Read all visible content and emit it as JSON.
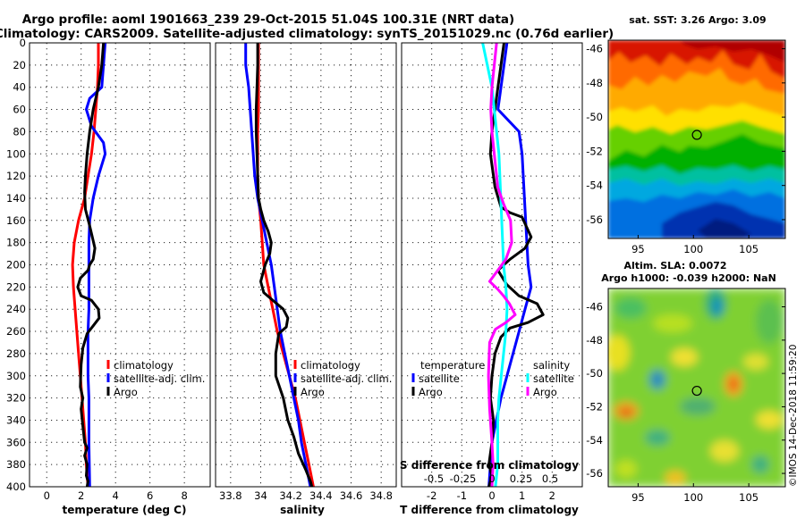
{
  "header": {
    "line1": "Argo profile: aoml 1901663_239 29-Oct-2015 51.04S 100.31E (NRT data)",
    "line2": "Climatology: CARS2009. Satellite-adjusted climatology: synTS_20151029.nc (0.76d earlier)"
  },
  "colors": {
    "climatology": "#ff0000",
    "satellite": "#0000ff",
    "argo": "#000000",
    "salinity_satellite": "#00ffff",
    "salinity_argo": "#ff00ff"
  },
  "credit": "©IMOS 14-Dec-2018 11:59:20",
  "chart_data": [
    {
      "type": "line",
      "name": "temperature",
      "xlabel": "temperature (deg C)",
      "ylabel": "depth",
      "xlim": [
        -1,
        9.5
      ],
      "ylim": [
        0,
        400
      ],
      "x_ticks": [
        0,
        2,
        4,
        6,
        8
      ],
      "x_tick_labels": [
        "0",
        "2",
        "4",
        "6",
        "8"
      ],
      "y_ticks": [
        0,
        20,
        40,
        60,
        80,
        100,
        120,
        140,
        160,
        180,
        200,
        220,
        240,
        260,
        280,
        300,
        320,
        340,
        360,
        380,
        400
      ],
      "y_tick_labels": [
        "0",
        "20",
        "40",
        "60",
        "80",
        "100",
        "120",
        "140",
        "160",
        "180",
        "200",
        "220",
        "240",
        "260",
        "280",
        "300",
        "320",
        "340",
        "360",
        "380",
        "400"
      ],
      "legend": [
        "climatology",
        "satellite-adj. clim.",
        "Argo"
      ],
      "series": [
        {
          "name": "climatology",
          "color": "#ff0000",
          "x": [
            3.0,
            3.0,
            2.95,
            2.85,
            2.75,
            2.6,
            2.4,
            2.2,
            1.85,
            1.6,
            1.5,
            1.55,
            1.65,
            1.75,
            1.85,
            1.95,
            2.05,
            2.15,
            2.25,
            2.3,
            2.35,
            2.4
          ],
          "y": [
            0,
            20,
            40,
            60,
            80,
            100,
            120,
            140,
            160,
            180,
            200,
            220,
            240,
            260,
            280,
            300,
            320,
            340,
            360,
            380,
            390,
            400
          ]
        },
        {
          "name": "satellite-adj. clim.",
          "color": "#0000ff",
          "x": [
            3.4,
            3.3,
            3.2,
            2.5,
            2.3,
            2.6,
            3.3,
            3.4,
            3.0,
            2.7,
            2.5,
            2.45,
            2.45,
            2.45,
            2.45,
            2.4,
            2.4,
            2.4,
            2.45,
            2.45,
            2.45,
            2.5
          ],
          "y": [
            0,
            20,
            40,
            50,
            60,
            75,
            90,
            100,
            120,
            140,
            160,
            180,
            200,
            220,
            240,
            260,
            280,
            300,
            320,
            340,
            360,
            400
          ]
        },
        {
          "name": "Argo",
          "color": "#000000",
          "x": [
            3.3,
            3.2,
            3.0,
            2.7,
            2.5,
            2.35,
            2.25,
            2.2,
            2.25,
            2.5,
            2.65,
            2.8,
            2.7,
            2.5,
            2.4,
            1.95,
            1.8,
            2.0,
            2.6,
            3.0,
            3.05,
            2.7,
            2.35,
            2.1,
            2.0,
            1.95,
            2.1,
            2.0,
            2.1,
            2.2,
            2.35,
            2.2,
            2.35,
            2.3,
            2.4,
            2.35
          ],
          "y": [
            0,
            20,
            40,
            60,
            80,
            100,
            120,
            135,
            150,
            165,
            175,
            185,
            195,
            200,
            205,
            212,
            220,
            228,
            232,
            240,
            248,
            255,
            262,
            275,
            290,
            310,
            320,
            330,
            345,
            360,
            365,
            372,
            380,
            390,
            395,
            400
          ]
        }
      ]
    },
    {
      "type": "line",
      "name": "salinity",
      "xlabel": "salinity",
      "ylabel": "depth",
      "xlim": [
        33.7,
        34.9
      ],
      "ylim": [
        0,
        400
      ],
      "x_ticks": [
        33.8,
        34,
        34.2,
        34.4,
        34.6,
        34.8
      ],
      "x_tick_labels": [
        "33.8",
        "34",
        "34.2",
        "34.4",
        "34.6",
        "34.8"
      ],
      "legend": [
        "climatology",
        "satellite-adj. clim.",
        "Argo"
      ],
      "series": [
        {
          "name": "climatology",
          "color": "#ff0000",
          "x": [
            33.985,
            33.985,
            33.985,
            33.985,
            33.98,
            33.98,
            33.98,
            33.985,
            34.0,
            34.01,
            34.02,
            34.05,
            34.08,
            34.11,
            34.15,
            34.19,
            34.23,
            34.26,
            34.29,
            34.32,
            34.35
          ],
          "y": [
            0,
            20,
            40,
            60,
            80,
            100,
            120,
            140,
            160,
            180,
            200,
            220,
            240,
            260,
            280,
            300,
            320,
            340,
            360,
            380,
            400
          ]
        },
        {
          "name": "satellite-adj. clim.",
          "color": "#0000ff",
          "x": [
            33.9,
            33.9,
            33.92,
            33.93,
            33.94,
            33.95,
            33.96,
            33.98,
            34.01,
            34.04,
            34.07,
            34.09,
            34.11,
            34.13,
            34.16,
            34.19,
            34.22,
            34.25,
            34.27,
            34.3,
            34.33
          ],
          "y": [
            0,
            20,
            40,
            60,
            80,
            100,
            120,
            140,
            160,
            180,
            200,
            220,
            240,
            260,
            280,
            300,
            320,
            340,
            360,
            380,
            400
          ]
        },
        {
          "name": "Argo",
          "color": "#000000",
          "x": [
            33.98,
            33.98,
            33.975,
            33.97,
            33.97,
            33.975,
            33.98,
            33.985,
            34.0,
            34.02,
            34.05,
            34.07,
            34.06,
            34.03,
            34.0,
            34.02,
            34.08,
            34.15,
            34.18,
            34.17,
            34.12,
            34.1,
            34.1,
            34.15,
            34.18,
            34.22,
            34.25,
            34.3,
            34.33,
            34.34
          ],
          "y": [
            0,
            20,
            40,
            60,
            80,
            100,
            120,
            140,
            150,
            160,
            170,
            180,
            190,
            200,
            215,
            225,
            232,
            240,
            248,
            256,
            262,
            280,
            300,
            320,
            340,
            355,
            370,
            385,
            395,
            400
          ]
        }
      ]
    },
    {
      "type": "line",
      "name": "differences",
      "xlabel": "T difference from climatology",
      "x_secondary_label": "S difference from climatology",
      "xlim": [
        -3,
        3
      ],
      "ylim": [
        0,
        400
      ],
      "x_ticks": [
        -2,
        -1,
        0,
        1,
        2
      ],
      "x_tick_labels": [
        "-2",
        "-1",
        "0",
        "1",
        "2"
      ],
      "x_secondary_ticks": [
        -0.5,
        -0.25,
        0,
        0.25,
        0.5
      ],
      "x_secondary_tick_labels": [
        "-0.5",
        "-0.25",
        "0",
        "0.25",
        "0.5"
      ],
      "legend_temperature_title": "temperature",
      "legend_salinity_title": "salinity",
      "legend_temperature": [
        "satellite",
        "Argo"
      ],
      "legend_salinity": [
        "satellite",
        "Argo"
      ],
      "series": [
        {
          "name": "T satellite",
          "color": "#0000ff",
          "x": [
            0.5,
            0.4,
            0.3,
            0.2,
            0.9,
            1.0,
            1.1,
            1.2,
            1.3,
            1.1,
            0.9,
            0.7,
            0.5,
            0.3,
            0.15,
            0.0,
            -0.1
          ],
          "y": [
            0,
            20,
            40,
            60,
            80,
            100,
            150,
            200,
            220,
            240,
            260,
            280,
            300,
            320,
            340,
            360,
            400
          ]
        },
        {
          "name": "T Argo",
          "color": "#000000",
          "x": [
            0.4,
            0.3,
            0.2,
            0.1,
            0.0,
            -0.05,
            0.1,
            0.3,
            0.6,
            1.0,
            1.3,
            1.1,
            0.6,
            0.2,
            0.5,
            0.9,
            1.5,
            1.7,
            1.2,
            0.6,
            0.3,
            0.1,
            0.0,
            -0.05,
            0.05,
            0.0,
            -0.1,
            0.0,
            -0.1
          ],
          "y": [
            0,
            20,
            40,
            60,
            80,
            100,
            130,
            148,
            153,
            157,
            175,
            185,
            195,
            205,
            218,
            228,
            235,
            245,
            252,
            257,
            265,
            280,
            300,
            320,
            340,
            360,
            380,
            390,
            400
          ]
        },
        {
          "name": "S satellite",
          "color": "#00ffff",
          "x": [
            -0.08,
            -0.04,
            0.0,
            0.02,
            0.04,
            0.06,
            0.08,
            0.1,
            0.12,
            0.13,
            0.12,
            0.1,
            0.08,
            0.06,
            0.05,
            0.05,
            0.03
          ],
          "y": [
            0,
            20,
            40,
            60,
            80,
            100,
            150,
            200,
            220,
            240,
            260,
            280,
            300,
            320,
            340,
            380,
            400
          ]
        },
        {
          "name": "S Argo",
          "color": "#ff00ff",
          "x": [
            0.04,
            0.02,
            0.0,
            -0.01,
            0.0,
            0.02,
            0.05,
            0.1,
            0.16,
            0.17,
            0.12,
            0.05,
            -0.02,
            0.05,
            0.1,
            0.15,
            0.2,
            0.12,
            0.03,
            -0.02,
            -0.03,
            -0.02,
            0.0,
            0.01,
            0.0
          ],
          "y": [
            0,
            20,
            40,
            60,
            80,
            100,
            130,
            145,
            160,
            180,
            195,
            205,
            215,
            222,
            228,
            235,
            245,
            252,
            258,
            270,
            300,
            330,
            360,
            380,
            400
          ]
        }
      ]
    },
    {
      "type": "heatmap",
      "name": "sst-map",
      "title": "sat. SST: 3.26 Argo: 3.09",
      "x_ticks": [
        95,
        100,
        105
      ],
      "x_tick_labels": [
        "95",
        "100",
        "105"
      ],
      "y_ticks": [
        -46,
        -48,
        -50,
        -52,
        -54,
        -56
      ],
      "y_tick_labels": [
        "-46",
        "-48",
        "-50",
        "-52",
        "-54",
        "-56"
      ],
      "xlim": [
        92.3,
        108.3
      ],
      "ylim": [
        -57.1,
        -45.5
      ],
      "marker": [
        100.31,
        -51.04
      ]
    },
    {
      "type": "heatmap",
      "name": "sla-map",
      "title1": "Altim. SLA: 0.0072",
      "title2": "Argo h1000: -0.039 h2000: NaN",
      "x_ticks": [
        95,
        100,
        105
      ],
      "x_tick_labels": [
        "95",
        "100",
        "105"
      ],
      "y_ticks": [
        -46,
        -48,
        -50,
        -52,
        -54,
        -56
      ],
      "y_tick_labels": [
        "-46",
        "-48",
        "-50",
        "-52",
        "-54",
        "-56"
      ],
      "xlim": [
        92.3,
        108.3
      ],
      "ylim": [
        -56.8,
        -44.9
      ],
      "marker": [
        100.31,
        -51.04
      ]
    }
  ]
}
